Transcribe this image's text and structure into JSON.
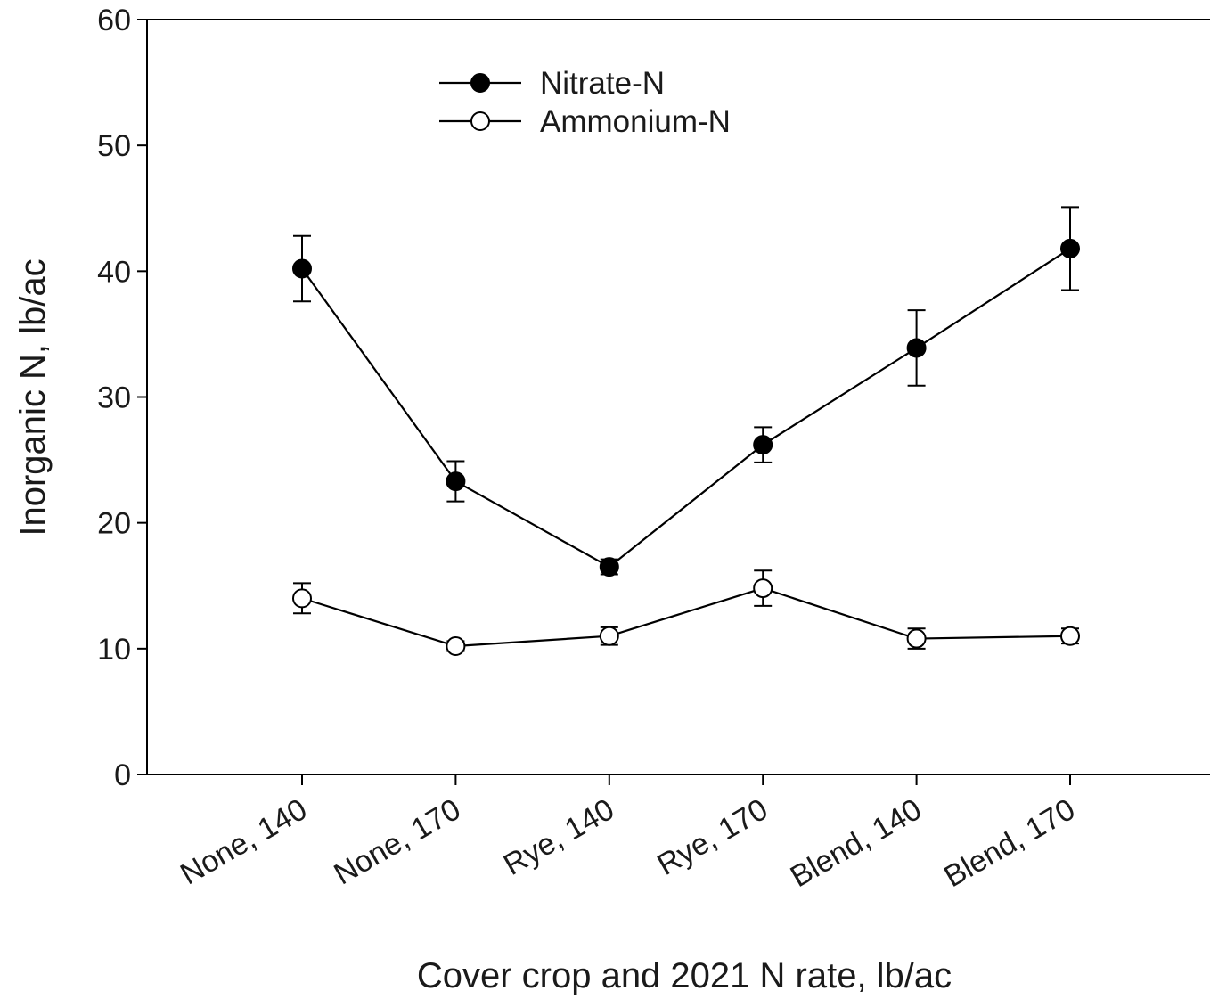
{
  "chart_data": {
    "type": "line",
    "title": "",
    "xlabel": "Cover crop and 2021 N rate, lb/ac",
    "ylabel": "Inorganic N, lb/ac",
    "ylim": [
      0,
      60
    ],
    "yticks": [
      0,
      10,
      20,
      30,
      40,
      50,
      60
    ],
    "categories": [
      "None, 140",
      "None, 170",
      "Rye, 140",
      "Rye, 170",
      "Blend, 140",
      "Blend, 170"
    ],
    "legend_position": "top-center",
    "grid": false,
    "series": [
      {
        "name": "Nitrate-N",
        "marker": "filled-circle",
        "color": "#000000",
        "values": [
          40.2,
          23.3,
          16.5,
          26.2,
          33.9,
          41.8
        ],
        "error": [
          2.6,
          1.6,
          0.6,
          1.4,
          3.0,
          3.3
        ]
      },
      {
        "name": "Ammonium-N",
        "marker": "open-circle",
        "color": "#000000",
        "values": [
          14.0,
          10.2,
          11.0,
          14.8,
          10.8,
          11.0
        ],
        "error": [
          1.2,
          0.4,
          0.7,
          1.4,
          0.8,
          0.6
        ]
      }
    ]
  }
}
